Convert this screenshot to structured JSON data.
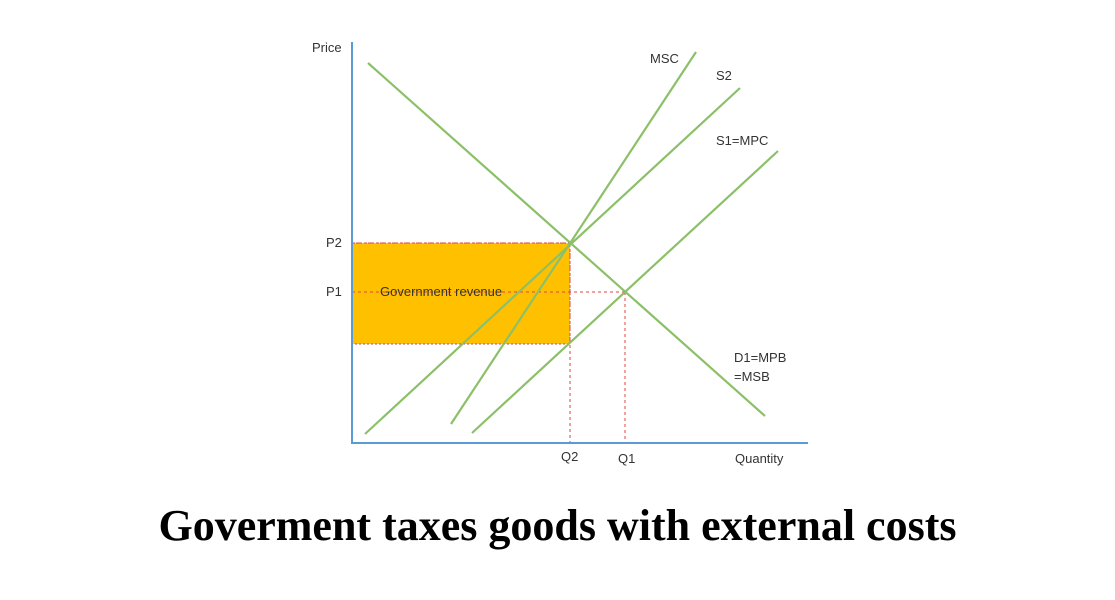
{
  "axes": {
    "y_label": "Price",
    "x_label": "Quantity"
  },
  "price_ticks": {
    "p2": "P2",
    "p1": "P1"
  },
  "quantity_ticks": {
    "q2": "Q2",
    "q1": "Q1"
  },
  "curves": {
    "msc": "MSC",
    "s2": "S2",
    "s1": "S1=MPC",
    "demand_line1": "D1=MPB",
    "demand_line2": "=MSB"
  },
  "area": {
    "label": "Government revenue"
  },
  "caption": "Goverment taxes goods with external costs",
  "colors": {
    "axis": "#5b9bd5",
    "curve": "#8cc068",
    "revenue_fill": "#ffc000",
    "guide": "#e0463c"
  }
}
